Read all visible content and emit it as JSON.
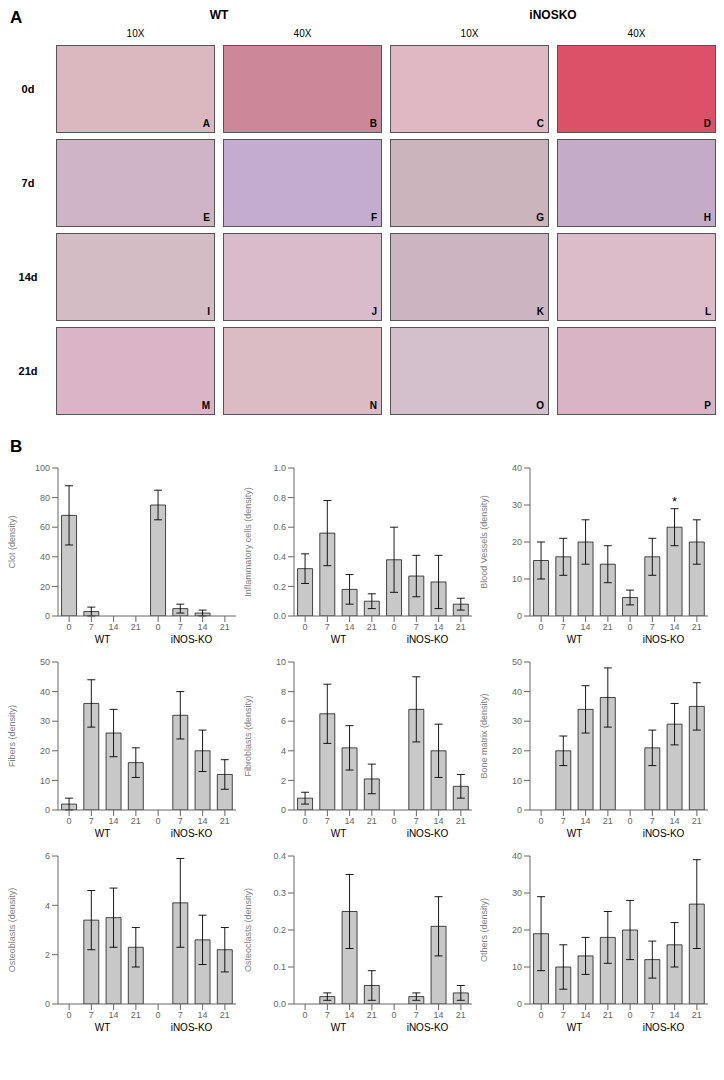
{
  "figure": {
    "panel_labels": [
      "A",
      "B"
    ],
    "image_grid": {
      "column_groups": [
        "WT",
        "iNOSKO"
      ],
      "columns": [
        "10X",
        "40X",
        "10X",
        "40X"
      ],
      "rows": [
        "0d",
        "7d",
        "14d",
        "21d"
      ],
      "letters": [
        [
          "A",
          "B",
          "C",
          "D"
        ],
        [
          "E",
          "F",
          "G",
          "H"
        ],
        [
          "I",
          "J",
          "K",
          "L"
        ],
        [
          "M",
          "N",
          "O",
          "P"
        ]
      ],
      "colors": [
        [
          "#dbb8c0",
          "#cc8898",
          "#e0b8c4",
          "#dc5068"
        ],
        [
          "#ceb4c4",
          "#c4acd0",
          "#ccb4bc",
          "#c4acc8"
        ],
        [
          "#d4bcc4",
          "#d8bccc",
          "#ccb4c0",
          "#dcbcc8"
        ],
        [
          "#dcb4c8",
          "#dcbcc4",
          "#d4bfcc",
          "#d8b4c4"
        ]
      ]
    }
  },
  "chart_data": [
    {
      "type": "bar",
      "ylabel": "Clot (density)",
      "categories": [
        "0",
        "7",
        "14",
        "21",
        "0",
        "7",
        "14",
        "21"
      ],
      "values": [
        68,
        3,
        0,
        0,
        75,
        5,
        2,
        0
      ],
      "errors": [
        20,
        3,
        0,
        0,
        10,
        3,
        2,
        0
      ],
      "ylim": [
        0,
        100
      ],
      "yticks": [
        0,
        20,
        40,
        60,
        80,
        100
      ],
      "color": "#c8c8c8",
      "grid": false,
      "groups": [
        "WT",
        "iNOS-KO"
      ],
      "marks": []
    },
    {
      "type": "bar",
      "ylabel": "Inflammatory cells (density)",
      "categories": [
        "0",
        "7",
        "14",
        "21",
        "0",
        "7",
        "14",
        "21"
      ],
      "values": [
        0.32,
        0.56,
        0.18,
        0.1,
        0.38,
        0.27,
        0.23,
        0.08
      ],
      "errors": [
        0.1,
        0.22,
        0.1,
        0.05,
        0.22,
        0.14,
        0.18,
        0.04
      ],
      "ylim": [
        0,
        1.0
      ],
      "yticks": [
        {
          "value": 0,
          "label": "0.0"
        },
        0.2,
        0.4,
        0.6,
        0.8,
        {
          "value": 1,
          "label": "1.0"
        }
      ],
      "color": "#c8c8c8",
      "grid": false,
      "groups": [
        "WT",
        "iNOS-KO"
      ],
      "marks": []
    },
    {
      "type": "bar",
      "ylabel": "Blood Vessels (density)",
      "categories": [
        "0",
        "7",
        "14",
        "21",
        "0",
        "7",
        "14",
        "21"
      ],
      "values": [
        15,
        16,
        20,
        14,
        5,
        16,
        24,
        20
      ],
      "errors": [
        5,
        5,
        6,
        5,
        2,
        5,
        5,
        6
      ],
      "ylim": [
        0,
        40
      ],
      "yticks": [
        0,
        10,
        20,
        30,
        40
      ],
      "color": "#c8c8c8",
      "grid": false,
      "groups": [
        "WT",
        "iNOS-KO"
      ],
      "marks": [
        {
          "text": "*",
          "category_index": 6
        }
      ]
    },
    {
      "type": "bar",
      "ylabel": "Fibers (density)",
      "categories": [
        "0",
        "7",
        "14",
        "21",
        "0",
        "7",
        "14",
        "21"
      ],
      "values": [
        2,
        36,
        26,
        16,
        0,
        32,
        20,
        12
      ],
      "errors": [
        2,
        8,
        8,
        5,
        0,
        8,
        7,
        5
      ],
      "ylim": [
        0,
        50
      ],
      "yticks": [
        0,
        10,
        20,
        30,
        40,
        50
      ],
      "color": "#c8c8c8",
      "grid": false,
      "groups": [
        "WT",
        "iNOS-KO"
      ],
      "marks": []
    },
    {
      "type": "bar",
      "ylabel": "Fibroblasts (density)",
      "categories": [
        "0",
        "7",
        "14",
        "21",
        "0",
        "7",
        "14",
        "21"
      ],
      "values": [
        0.8,
        6.5,
        4.2,
        2.1,
        0,
        6.8,
        4.0,
        1.6
      ],
      "errors": [
        0.4,
        2.0,
        1.5,
        1.0,
        0,
        2.2,
        1.8,
        0.8
      ],
      "ylim": [
        0,
        10
      ],
      "yticks": [
        0,
        2,
        4,
        6,
        8,
        10
      ],
      "color": "#c8c8c8",
      "grid": false,
      "groups": [
        "WT",
        "iNOS-KO"
      ],
      "marks": []
    },
    {
      "type": "bar",
      "ylabel": "Bone matrix (density)",
      "categories": [
        "0",
        "7",
        "14",
        "21",
        "0",
        "7",
        "14",
        "21"
      ],
      "values": [
        0,
        20,
        34,
        38,
        0,
        21,
        29,
        35
      ],
      "errors": [
        0,
        5,
        8,
        10,
        0,
        6,
        7,
        8
      ],
      "ylim": [
        0,
        50
      ],
      "yticks": [
        0,
        10,
        20,
        30,
        40,
        50
      ],
      "color": "#c8c8c8",
      "grid": false,
      "groups": [
        "WT",
        "iNOS-KO"
      ],
      "marks": []
    },
    {
      "type": "bar",
      "ylabel": "Osteoblasts (density)",
      "categories": [
        "0",
        "7",
        "14",
        "21",
        "0",
        "7",
        "14",
        "21"
      ],
      "values": [
        0,
        3.4,
        3.5,
        2.3,
        0,
        4.1,
        2.6,
        2.2
      ],
      "errors": [
        0,
        1.2,
        1.2,
        0.8,
        0,
        1.8,
        1.0,
        0.9
      ],
      "ylim": [
        0,
        6
      ],
      "yticks": [
        0,
        2,
        4,
        6
      ],
      "color": "#c8c8c8",
      "grid": false,
      "groups": [
        "WT",
        "iNOS-KO"
      ],
      "marks": []
    },
    {
      "type": "bar",
      "ylabel": "Osteoclasts (density)",
      "categories": [
        "0",
        "7",
        "14",
        "21",
        "0",
        "7",
        "14",
        "21"
      ],
      "values": [
        0,
        0.02,
        0.25,
        0.05,
        0,
        0.02,
        0.21,
        0.03
      ],
      "errors": [
        0,
        0.01,
        0.1,
        0.04,
        0,
        0.01,
        0.08,
        0.02
      ],
      "ylim": [
        0,
        0.4
      ],
      "yticks": [
        {
          "value": 0,
          "label": "0.0"
        },
        0.1,
        0.2,
        0.3,
        0.4
      ],
      "color": "#c8c8c8",
      "grid": false,
      "groups": [
        "WT",
        "iNOS-KO"
      ],
      "marks": []
    },
    {
      "type": "bar",
      "ylabel": "Others (density)",
      "categories": [
        "0",
        "7",
        "14",
        "21",
        "0",
        "7",
        "14",
        "21"
      ],
      "values": [
        19,
        10,
        13,
        18,
        20,
        12,
        16,
        27
      ],
      "errors": [
        10,
        6,
        5,
        7,
        8,
        5,
        6,
        12
      ],
      "ylim": [
        0,
        40
      ],
      "yticks": [
        0,
        10,
        20,
        30,
        40
      ],
      "color": "#c8c8c8",
      "grid": false,
      "groups": [
        "WT",
        "iNOS-KO"
      ],
      "marks": []
    }
  ]
}
